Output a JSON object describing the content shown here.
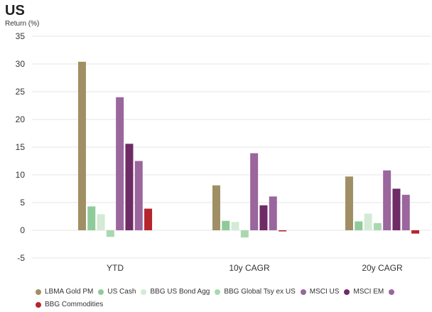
{
  "header": {
    "title": "US",
    "subtitle": "Return (%)"
  },
  "chart_data": {
    "type": "bar",
    "title": "US",
    "ylabel": "Return (%)",
    "xlabel": "",
    "ylim": [
      -5,
      35
    ],
    "yticks": [
      -5,
      0,
      5,
      10,
      15,
      20,
      25,
      30,
      35
    ],
    "categories": [
      "YTD",
      "10y CAGR",
      "20y CAGR"
    ],
    "grid": true,
    "legend_position": "bottom",
    "series": [
      {
        "name": "LBMA Gold PM",
        "color": "#a08f64",
        "values": [
          30.4,
          8.1,
          9.7
        ]
      },
      {
        "name": "US Cash",
        "color": "#8fcb9a",
        "values": [
          4.3,
          1.7,
          1.6
        ]
      },
      {
        "name": "BBG US Bond Agg",
        "color": "#d4ead5",
        "values": [
          2.9,
          1.5,
          3.0
        ]
      },
      {
        "name": "BBG Global Tsy ex US",
        "color": "#a9d8b0",
        "values": [
          -1.2,
          -1.3,
          1.3
        ]
      },
      {
        "name": "MSCI US",
        "color": "#9a669d",
        "values": [
          24.0,
          13.9,
          10.8
        ]
      },
      {
        "name": "MSCI EM",
        "color": "#6e2b66",
        "values": [
          15.6,
          4.5,
          7.5
        ]
      },
      {
        "name": "",
        "color": "#9a669d",
        "values": [
          12.5,
          6.1,
          6.4
        ]
      },
      {
        "name": "BBG Commodities",
        "color": "#b5252d",
        "values": [
          3.9,
          -0.2,
          -0.6
        ]
      }
    ]
  }
}
